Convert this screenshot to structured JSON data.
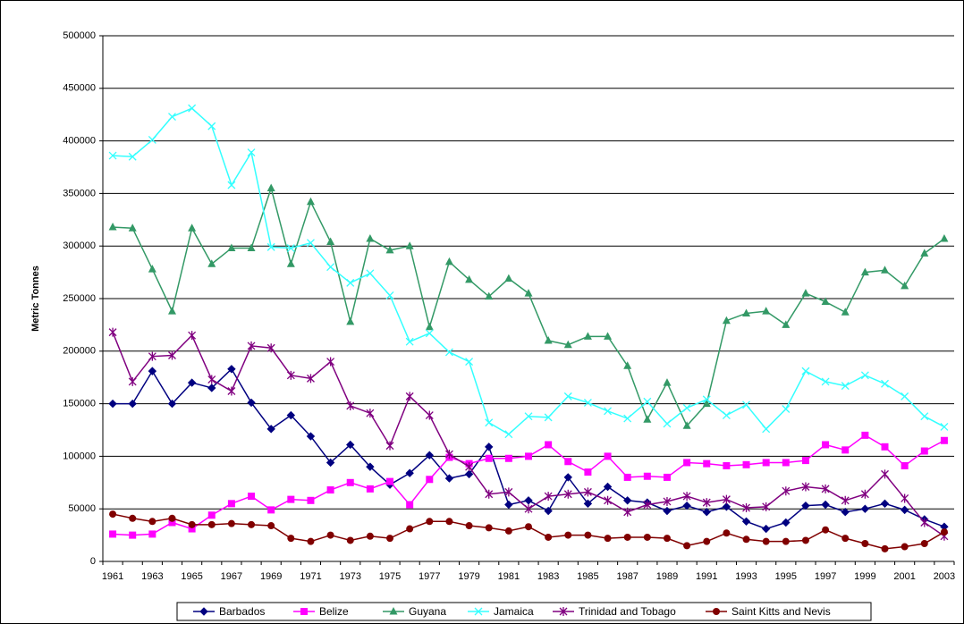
{
  "chart_data": {
    "type": "line",
    "y_label": "Metric Tonnes",
    "categories": [
      "1961",
      null,
      "1963",
      null,
      "1965",
      null,
      "1967",
      null,
      "1969",
      null,
      "1971",
      null,
      "1973",
      null,
      "1975",
      null,
      "1977",
      null,
      "1979",
      null,
      "1981",
      null,
      "1983",
      null,
      "1985",
      null,
      "1987",
      null,
      "1989",
      null,
      "1991",
      null,
      "1993",
      null,
      "1995",
      null,
      "1997",
      null,
      "1999",
      null,
      "2001",
      null,
      "2003"
    ],
    "ylim": [
      0,
      500000
    ],
    "yticks": [
      0,
      50000,
      100000,
      150000,
      200000,
      250000,
      300000,
      350000,
      400000,
      450000,
      500000
    ],
    "grid": true,
    "legend": "bottom",
    "series": [
      {
        "name": "Barbados",
        "color": "#000080",
        "marker": "diamond",
        "values": [
          150000,
          150000,
          181000,
          150000,
          170000,
          165000,
          183000,
          151000,
          126000,
          139000,
          119000,
          94000,
          111000,
          90000,
          73000,
          84000,
          101000,
          79000,
          83000,
          109000,
          54000,
          58000,
          48000,
          80000,
          55000,
          71000,
          58000,
          56000,
          48000,
          53000,
          47000,
          52000,
          38000,
          31000,
          37000,
          53000,
          54000,
          47000,
          50000,
          55000,
          49000,
          40000,
          33000
        ]
      },
      {
        "name": "Belize",
        "color": "#ff00ff",
        "marker": "square",
        "values": [
          26000,
          25000,
          26000,
          37000,
          31000,
          44000,
          55000,
          62000,
          49000,
          59000,
          58000,
          68000,
          75000,
          69000,
          76000,
          54000,
          78000,
          99000,
          93000,
          98000,
          98000,
          100000,
          111000,
          95000,
          85000,
          100000,
          80000,
          81000,
          80000,
          94000,
          93000,
          91000,
          92000,
          94000,
          94000,
          96000,
          111000,
          106000,
          120000,
          109000,
          91000,
          105000,
          115000
        ]
      },
      {
        "name": "Guyana",
        "color": "#339966",
        "marker": "triangle",
        "values": [
          318000,
          317000,
          278000,
          238000,
          317000,
          283000,
          298000,
          298000,
          355000,
          283000,
          342000,
          304000,
          228000,
          307000,
          296000,
          300000,
          223000,
          285000,
          268000,
          252000,
          269000,
          255000,
          210000,
          206000,
          214000,
          214000,
          186000,
          135000,
          170000,
          129000,
          150000,
          229000,
          236000,
          238000,
          225000,
          255000,
          247000,
          237000,
          275000,
          277000,
          262000,
          293000,
          307000
        ]
      },
      {
        "name": "Jamaica",
        "color": "#33ffff",
        "marker": "x",
        "values": [
          386000,
          385000,
          401000,
          423000,
          431000,
          414000,
          358000,
          389000,
          299000,
          298000,
          303000,
          280000,
          265000,
          274000,
          253000,
          209000,
          217000,
          199000,
          190000,
          132000,
          121000,
          138000,
          137000,
          157000,
          151000,
          143000,
          136000,
          152000,
          131000,
          146000,
          154000,
          139000,
          149000,
          126000,
          145000,
          181000,
          171000,
          167000,
          177000,
          169000,
          157000,
          138000,
          128000
        ]
      },
      {
        "name": "Trinidad and Tobago",
        "color": "#800080",
        "marker": "star",
        "values": [
          218000,
          171000,
          195000,
          196000,
          215000,
          173000,
          162000,
          205000,
          203000,
          177000,
          174000,
          190000,
          148000,
          141000,
          110000,
          157000,
          139000,
          102000,
          90000,
          64000,
          66000,
          50000,
          62000,
          64000,
          66000,
          58000,
          47000,
          54000,
          57000,
          62000,
          56000,
          59000,
          51000,
          52000,
          67000,
          71000,
          69000,
          58000,
          64000,
          83000,
          60000,
          37000,
          24000
        ]
      },
      {
        "name": "Saint Kitts and Nevis",
        "color": "#800000",
        "marker": "circle",
        "values": [
          45000,
          41000,
          38000,
          41000,
          35000,
          35000,
          36000,
          35000,
          34000,
          22000,
          19000,
          25000,
          20000,
          24000,
          22000,
          31000,
          38000,
          38000,
          34000,
          32000,
          29000,
          33000,
          23000,
          25000,
          25000,
          22000,
          23000,
          23000,
          22000,
          15000,
          19000,
          27000,
          21000,
          19000,
          19000,
          20000,
          30000,
          22000,
          17000,
          12000,
          14000,
          17000,
          28000
        ]
      }
    ]
  }
}
